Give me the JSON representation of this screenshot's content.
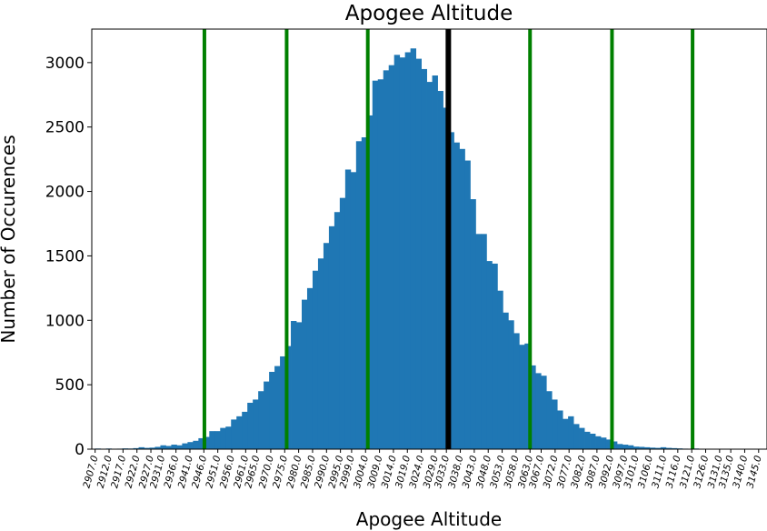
{
  "chart_data": {
    "type": "bar",
    "title": "Apogee Altitude",
    "xlabel": "Apogee Altitude",
    "ylabel": "Number of Occurences",
    "ylim": [
      0,
      3260
    ],
    "yticks": [
      0,
      500,
      1000,
      1500,
      2000,
      2500,
      3000
    ],
    "xlim": [
      2905.8,
      3148.0
    ],
    "bin_start": 2907.0,
    "bin_width": 1.95,
    "xtick_labels": [
      "2907.0",
      "2912.0",
      "2917.0",
      "2922.0",
      "2927.0",
      "2931.0",
      "2936.0",
      "2941.0",
      "2946.0",
      "2951.0",
      "2956.0",
      "2961.0",
      "2965.0",
      "2970.0",
      "2975.0",
      "2980.0",
      "2985.0",
      "2990.0",
      "2995.0",
      "2999.0",
      "3004.0",
      "3009.0",
      "3014.0",
      "3019.0",
      "3024.0",
      "3029.0",
      "3033.0",
      "3038.0",
      "3043.0",
      "3048.0",
      "3053.0",
      "3058.0",
      "3063.0",
      "3067.0",
      "3072.0",
      "3077.0",
      "3082.0",
      "3087.0",
      "3092.0",
      "3097.0",
      "3101.0",
      "3106.0",
      "3111.0",
      "3116.0",
      "3121.0",
      "3126.0",
      "3131.0",
      "3135.0",
      "3140.0",
      "3145.0"
    ],
    "values": [
      5,
      3,
      5,
      2,
      4,
      6,
      5,
      8,
      15,
      10,
      12,
      18,
      30,
      25,
      35,
      30,
      45,
      55,
      65,
      85,
      95,
      140,
      140,
      165,
      175,
      230,
      255,
      290,
      360,
      385,
      450,
      525,
      600,
      645,
      720,
      800,
      995,
      985,
      1160,
      1250,
      1385,
      1480,
      1600,
      1730,
      1840,
      1950,
      2170,
      2150,
      2390,
      2420,
      2590,
      2860,
      2870,
      2940,
      2980,
      3060,
      3040,
      3080,
      3110,
      3030,
      2950,
      2850,
      2900,
      2780,
      2650,
      2460,
      2380,
      2330,
      2240,
      1940,
      1670,
      1670,
      1460,
      1440,
      1230,
      1060,
      1000,
      900,
      810,
      820,
      650,
      590,
      570,
      450,
      385,
      300,
      235,
      255,
      195,
      165,
      135,
      120,
      100,
      90,
      75,
      60,
      40,
      35,
      30,
      20,
      18,
      15,
      12,
      10,
      15,
      10,
      8,
      6,
      4,
      3,
      5,
      3
    ],
    "vertical_lines": [
      {
        "x": 2946.2,
        "color": "#008000"
      },
      {
        "x": 2975.7,
        "color": "#008000"
      },
      {
        "x": 3004.8,
        "color": "#008000"
      },
      {
        "x": 3033.7,
        "color": "#000000"
      },
      {
        "x": 3063.0,
        "color": "#008000"
      },
      {
        "x": 3092.4,
        "color": "#008000"
      },
      {
        "x": 3121.3,
        "color": "#008000"
      }
    ],
    "bar_color": "#1f77b4",
    "grid": false,
    "legend": "none"
  }
}
